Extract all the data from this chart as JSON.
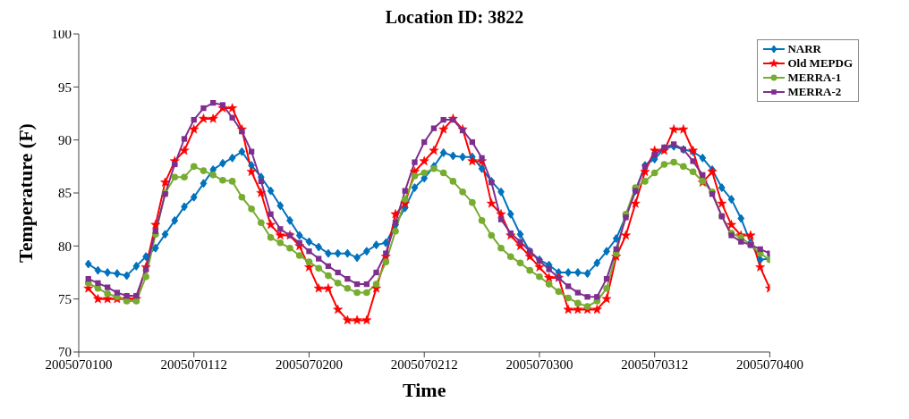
{
  "chart_data": {
    "type": "line",
    "title": "Location ID: 3822",
    "xlabel": "Time",
    "ylabel": "Temperature (F)",
    "x": [
      "2005-07-01T01:00",
      "2005-07-01T02:00",
      "2005-07-01T03:00",
      "2005-07-01T04:00",
      "2005-07-01T05:00",
      "2005-07-01T06:00",
      "2005-07-01T07:00",
      "2005-07-01T08:00",
      "2005-07-01T09:00",
      "2005-07-01T10:00",
      "2005-07-01T11:00",
      "2005-07-01T12:00",
      "2005-07-01T13:00",
      "2005-07-01T14:00",
      "2005-07-01T15:00",
      "2005-07-01T16:00",
      "2005-07-01T17:00",
      "2005-07-01T18:00",
      "2005-07-01T19:00",
      "2005-07-01T20:00",
      "2005-07-01T21:00",
      "2005-07-01T22:00",
      "2005-07-01T23:00",
      "2005-07-02T00:00",
      "2005-07-02T01:00",
      "2005-07-02T02:00",
      "2005-07-02T03:00",
      "2005-07-02T04:00",
      "2005-07-02T05:00",
      "2005-07-02T06:00",
      "2005-07-02T07:00",
      "2005-07-02T08:00",
      "2005-07-02T09:00",
      "2005-07-02T10:00",
      "2005-07-02T11:00",
      "2005-07-02T12:00",
      "2005-07-02T13:00",
      "2005-07-02T14:00",
      "2005-07-02T15:00",
      "2005-07-02T16:00",
      "2005-07-02T17:00",
      "2005-07-02T18:00",
      "2005-07-02T19:00",
      "2005-07-02T20:00",
      "2005-07-02T21:00",
      "2005-07-02T22:00",
      "2005-07-02T23:00",
      "2005-07-03T00:00",
      "2005-07-03T01:00",
      "2005-07-03T02:00",
      "2005-07-03T03:00",
      "2005-07-03T04:00",
      "2005-07-03T05:00",
      "2005-07-03T06:00",
      "2005-07-03T07:00",
      "2005-07-03T08:00",
      "2005-07-03T09:00",
      "2005-07-03T10:00",
      "2005-07-03T11:00",
      "2005-07-03T12:00",
      "2005-07-03T13:00",
      "2005-07-03T14:00",
      "2005-07-03T15:00",
      "2005-07-03T16:00",
      "2005-07-03T17:00",
      "2005-07-03T18:00",
      "2005-07-03T19:00",
      "2005-07-03T20:00",
      "2005-07-03T21:00",
      "2005-07-03T22:00",
      "2005-07-03T23:00",
      "2005-07-04T00:00"
    ],
    "xlim": [
      "2005-07-01T00:00",
      "2005-07-04T00:00"
    ],
    "xticks": [
      {
        "value": "2005-07-01T00:00",
        "label": "2005070100"
      },
      {
        "value": "2005-07-01T12:00",
        "label": "2005070112"
      },
      {
        "value": "2005-07-02T00:00",
        "label": "2005070200"
      },
      {
        "value": "2005-07-02T12:00",
        "label": "2005070212"
      },
      {
        "value": "2005-07-03T00:00",
        "label": "2005070300"
      },
      {
        "value": "2005-07-03T12:00",
        "label": "2005070312"
      },
      {
        "value": "2005-07-04T00:00",
        "label": "2005070400"
      }
    ],
    "ylim": [
      70,
      100
    ],
    "yticks": [
      70,
      75,
      80,
      85,
      90,
      95,
      100
    ],
    "grid": false,
    "legend": "top right",
    "line_style": "solid",
    "series": [
      {
        "name": "NARR",
        "color": "#0072bd",
        "marker": "diamond",
        "values": [
          78.3,
          77.7,
          77.5,
          77.4,
          77.2,
          78.1,
          79.0,
          79.8,
          81.1,
          82.4,
          83.7,
          84.6,
          85.9,
          87.2,
          87.8,
          88.3,
          88.9,
          87.6,
          86.5,
          85.2,
          83.8,
          82.4,
          81.0,
          80.4,
          79.9,
          79.3,
          79.3,
          79.3,
          78.9,
          79.5,
          80.1,
          80.3,
          82.0,
          83.6,
          85.5,
          86.4,
          87.5,
          88.8,
          88.5,
          88.4,
          88.4,
          87.3,
          86.1,
          85.1,
          83.0,
          81.1,
          79.5,
          78.7,
          78.2,
          77.5,
          77.5,
          77.5,
          77.4,
          78.4,
          79.5,
          80.7,
          82.8,
          85.2,
          87.6,
          88.2,
          89.2,
          89.4,
          89.1,
          88.9,
          88.3,
          87.2,
          85.5,
          84.4,
          82.6,
          80.3,
          78.7,
          78.8
        ]
      },
      {
        "name": "Old MEPDG",
        "color": "#ff0000",
        "marker": "star",
        "values": [
          76,
          75,
          75,
          75,
          75,
          75,
          78,
          82,
          86,
          88,
          89,
          91,
          92,
          92,
          93,
          93,
          91,
          87,
          85,
          82,
          81,
          81,
          80,
          78,
          76,
          76,
          74,
          73,
          73,
          73,
          76,
          79,
          83,
          84,
          87,
          88,
          89,
          91,
          92,
          91,
          88,
          88,
          84,
          83,
          81,
          80,
          79,
          78,
          77,
          77,
          74,
          74,
          74,
          74,
          75,
          79,
          81,
          84,
          87,
          89,
          89,
          91,
          91,
          89,
          86,
          87,
          84,
          82,
          81,
          81,
          78,
          76
        ]
      },
      {
        "name": "MERRA-1",
        "color": "#77ac30",
        "marker": "circle",
        "values": [
          76.5,
          76.0,
          75.5,
          75.2,
          74.8,
          74.8,
          77.1,
          81.1,
          85.0,
          86.5,
          86.5,
          87.5,
          87.1,
          86.7,
          86.2,
          86.1,
          84.6,
          83.5,
          82.2,
          80.8,
          80.3,
          79.8,
          79.1,
          78.5,
          77.9,
          77.2,
          76.5,
          76.0,
          75.6,
          75.6,
          76.4,
          78.5,
          81.4,
          84.4,
          86.6,
          86.9,
          87.3,
          86.9,
          86.1,
          85.1,
          84.1,
          82.4,
          81.0,
          79.8,
          79.0,
          78.4,
          77.7,
          77.1,
          76.4,
          75.7,
          75.1,
          74.6,
          74.3,
          74.8,
          76.0,
          79.3,
          83.0,
          85.5,
          86.1,
          86.9,
          87.7,
          87.9,
          87.5,
          87.0,
          86.1,
          85.1,
          82.8,
          81.2,
          80.8,
          80.1,
          79.3,
          78.7
        ]
      },
      {
        "name": "MERRA-2",
        "color": "#7e2f8e",
        "marker": "square",
        "values": [
          76.9,
          76.5,
          76.1,
          75.6,
          75.3,
          75.3,
          77.8,
          81.4,
          84.9,
          87.7,
          90.1,
          91.9,
          93.0,
          93.5,
          93.3,
          92.1,
          90.8,
          88.9,
          86.1,
          83.0,
          81.6,
          81.0,
          80.3,
          79.5,
          78.8,
          78.1,
          77.5,
          76.9,
          76.4,
          76.4,
          77.5,
          79.3,
          82.2,
          85.2,
          87.9,
          89.8,
          91.1,
          91.9,
          91.9,
          90.9,
          89.8,
          88.3,
          86.0,
          82.5,
          81.2,
          80.4,
          79.5,
          78.6,
          77.8,
          77.0,
          76.2,
          75.6,
          75.2,
          75.2,
          76.9,
          79.7,
          82.7,
          85.2,
          87.5,
          88.6,
          89.3,
          89.6,
          89.1,
          88.0,
          86.7,
          84.9,
          82.8,
          81.0,
          80.4,
          80.1,
          79.7,
          79.3
        ]
      }
    ]
  }
}
